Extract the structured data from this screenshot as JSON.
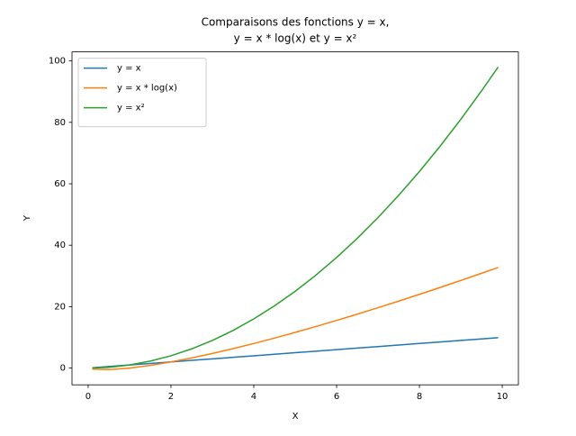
{
  "chart_data": {
    "type": "line",
    "title": [
      "Comparaisons des fonctions y = x,",
      "y = x * log(x) et y = x²"
    ],
    "xlabel": "X",
    "ylabel": "Y",
    "x": [
      0.1,
      0.5,
      1,
      1.5,
      2,
      2.5,
      3,
      3.5,
      4,
      4.5,
      5,
      5.5,
      6,
      6.5,
      7,
      7.5,
      8,
      8.5,
      9,
      9.5,
      9.9
    ],
    "series": [
      {
        "name": "y = x",
        "color": "#1f77b4",
        "values": [
          0.1,
          0.5,
          1,
          1.5,
          2,
          2.5,
          3,
          3.5,
          4,
          4.5,
          5,
          5.5,
          6,
          6.5,
          7,
          7.5,
          8,
          8.5,
          9,
          9.5,
          9.9
        ]
      },
      {
        "name": "y = x * log(x)",
        "color": "#ff7f0e",
        "values": [
          -0.33,
          -0.5,
          0,
          0.88,
          2,
          3.3,
          4.75,
          6.33,
          8,
          9.76,
          11.61,
          13.53,
          15.51,
          17.55,
          19.65,
          21.8,
          24,
          26.24,
          28.53,
          30.86,
          32.74
        ]
      },
      {
        "name": "y = x²",
        "color": "#2ca02c",
        "values": [
          0.01,
          0.25,
          1,
          2.25,
          4,
          6.25,
          9,
          12.25,
          16,
          20.25,
          25,
          30.25,
          36,
          42.25,
          49,
          56.25,
          64,
          72.25,
          81,
          90.25,
          98.01
        ]
      }
    ],
    "xlim": [
      -0.39,
      10.39
    ],
    "xticks": [
      0,
      2,
      4,
      6,
      8,
      10
    ],
    "ylim": [
      -5.46,
      102.94
    ],
    "yticks": [
      0,
      20,
      40,
      60,
      80,
      100
    ],
    "legend": "upper left",
    "grid": false
  }
}
